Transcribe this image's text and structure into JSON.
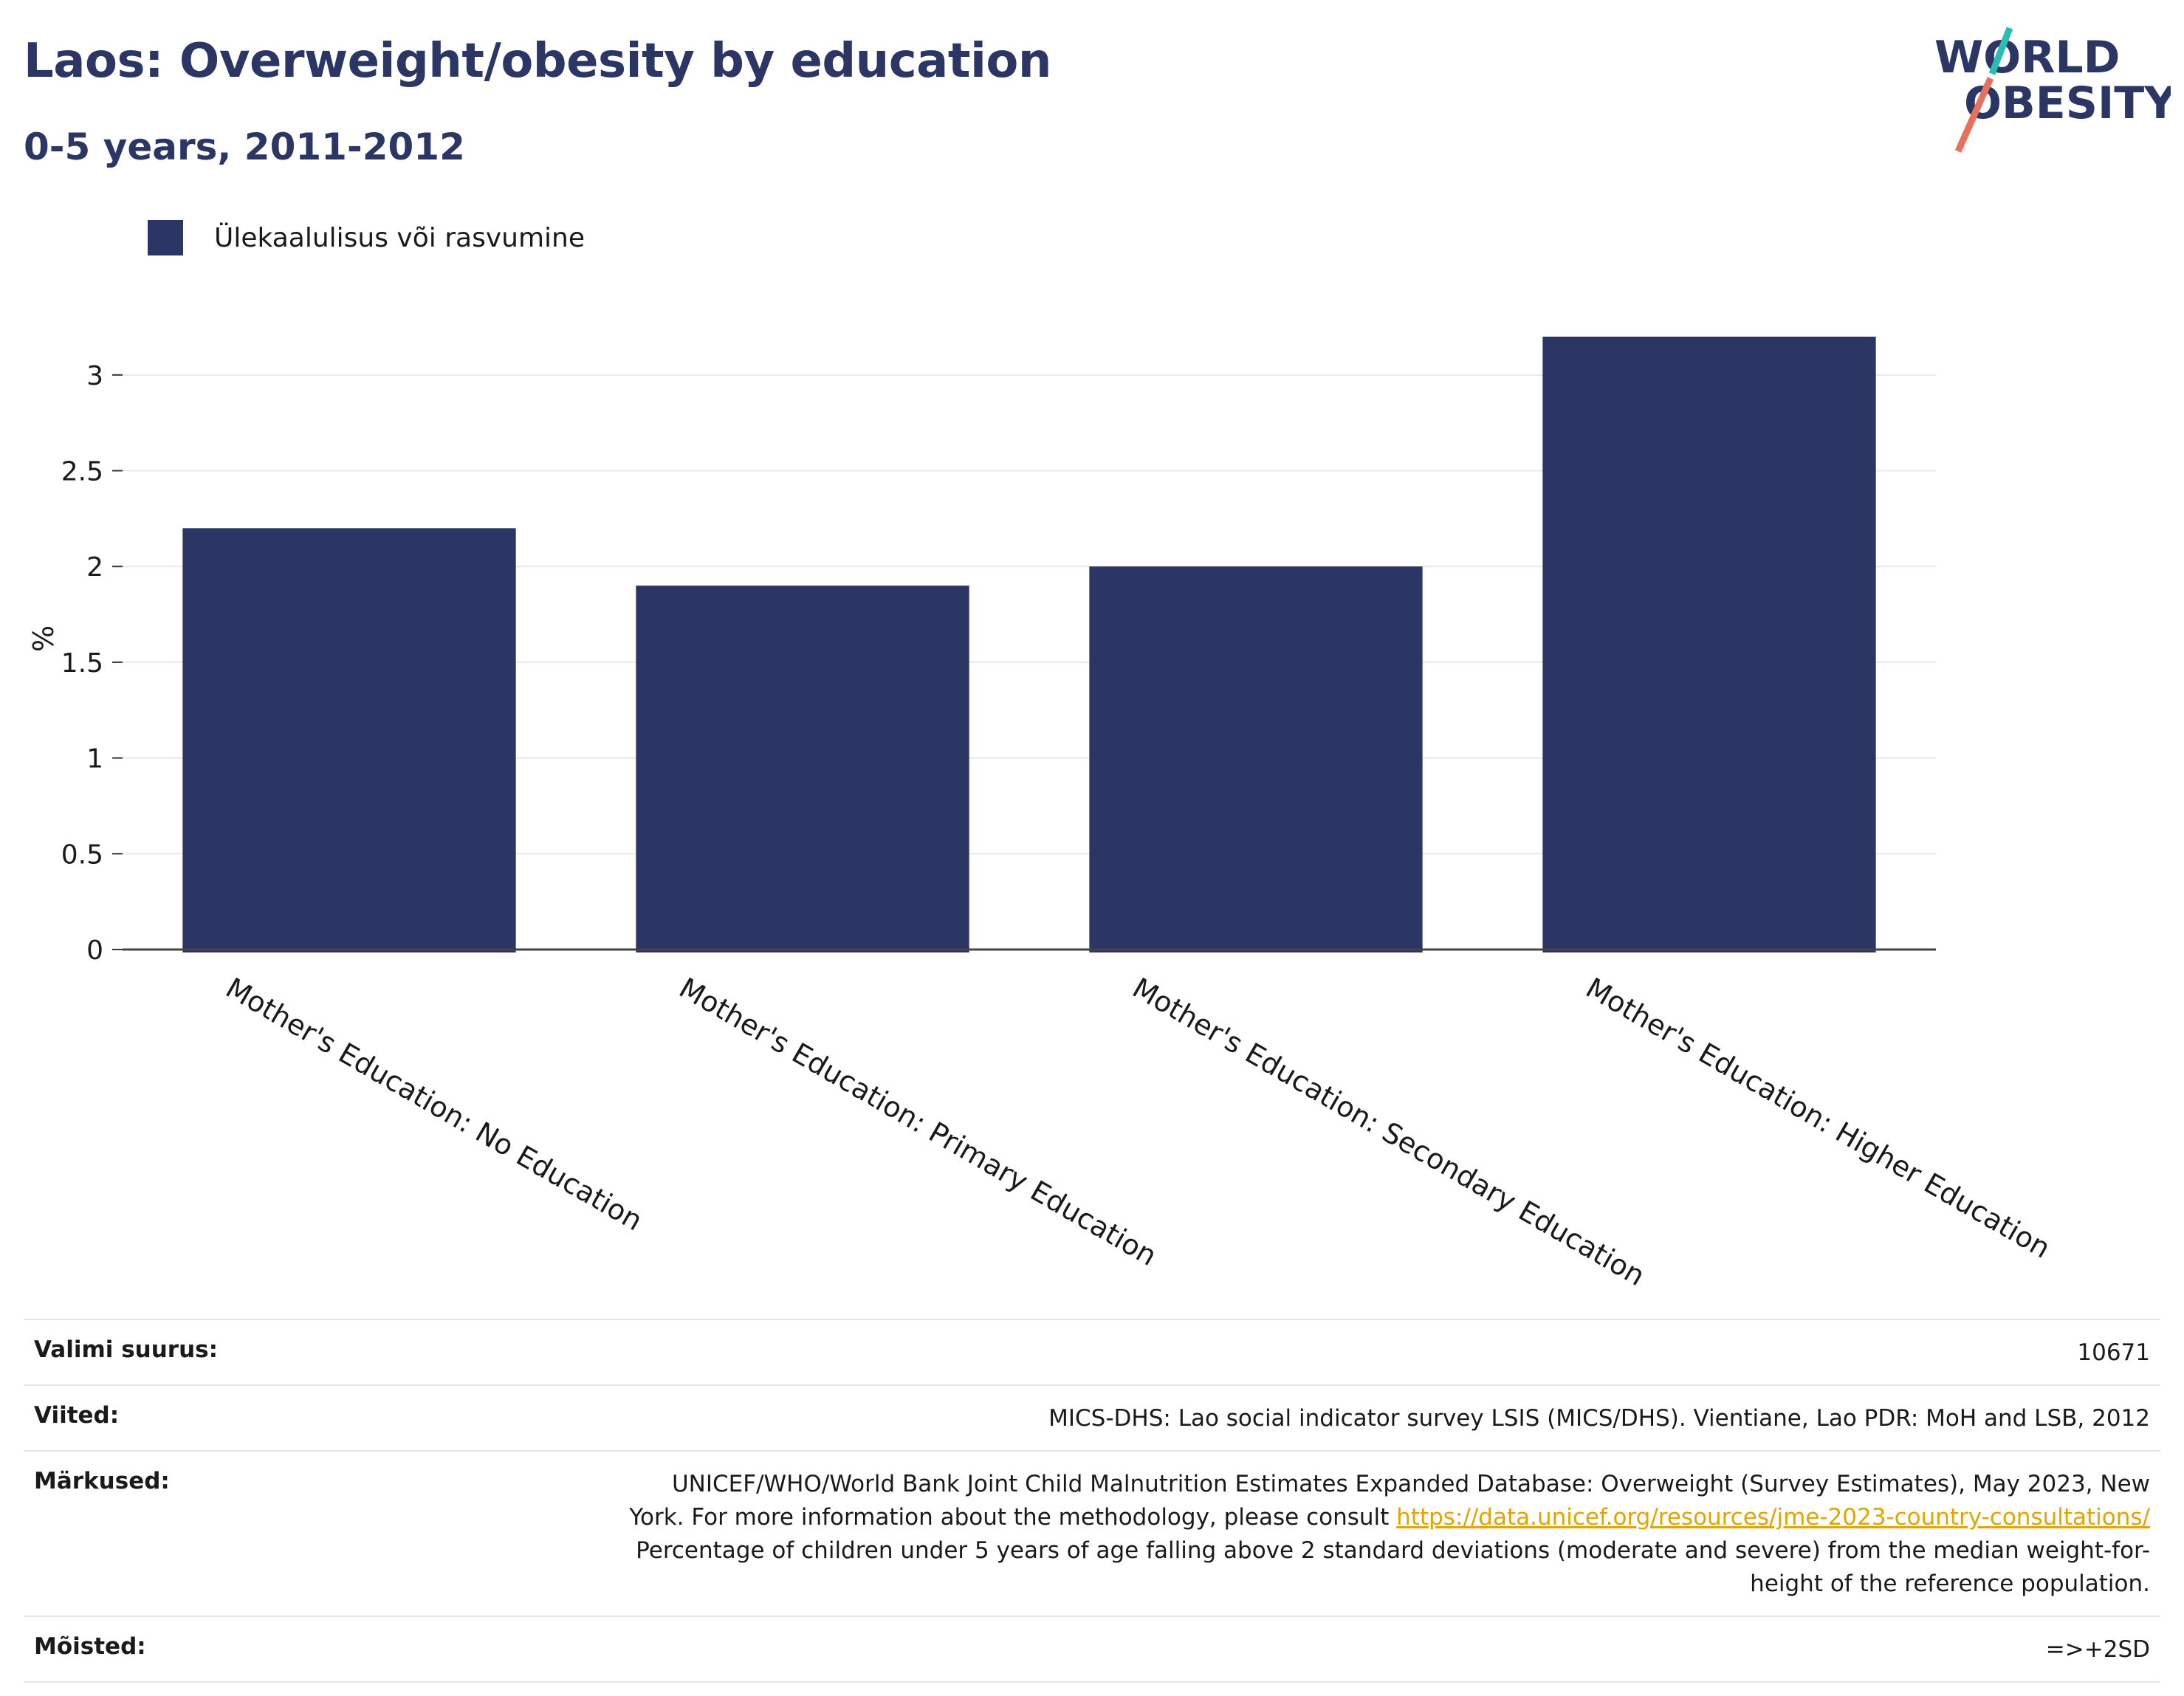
{
  "header": {
    "title": "Laos: Overweight/obesity by education",
    "subtitle": "0-5 years, 2011-2012"
  },
  "logo": {
    "line1": "WORLD",
    "line2": "OBESITY"
  },
  "chart_data": {
    "type": "bar",
    "categories": [
      "Mother's Education: No Education",
      "Mother's Education: Primary Education",
      "Mother's Education: Secondary Education",
      "Mother's Education: Higher Education"
    ],
    "series": [
      {
        "name": "Ülekaalulisus või rasvumine",
        "values": [
          2.2,
          1.9,
          2.0,
          3.2
        ],
        "color": "#2b3664"
      }
    ],
    "ylabel": "%",
    "ylim": [
      0,
      3.3
    ],
    "yticks": [
      0,
      0.5,
      1,
      1.5,
      2,
      2.5,
      3
    ],
    "ytick_labels": [
      "0",
      "0.5",
      "1",
      "1.5",
      "2",
      "2.5",
      "3"
    ],
    "grid": true,
    "legend_position": "top-left"
  },
  "footer": {
    "sample_label": "Valimi suurus:",
    "sample_value": "10671",
    "references_label": "Viited:",
    "references_value": "MICS-DHS: Lao social indicator survey LSIS (MICS/DHS). Vientiane, Lao PDR: MoH and LSB, 2012",
    "notes_label": "Märkused:",
    "notes_text_1": "UNICEF/WHO/World Bank Joint Child Malnutrition Estimates Expanded Database: Overweight (Survey Estimates), May 2023, New York. For more information about the methodology, please consult ",
    "notes_link": "https://data.unicef.org/resources/jme-2023-country-consultations/",
    "notes_text_2": " Percentage of children under 5 years of age falling above 2 standard deviations (moderate and severe) from the median weight-for-height of the reference population.",
    "definitions_label": "Mõisted:",
    "definitions_value": "=>+2SD"
  }
}
